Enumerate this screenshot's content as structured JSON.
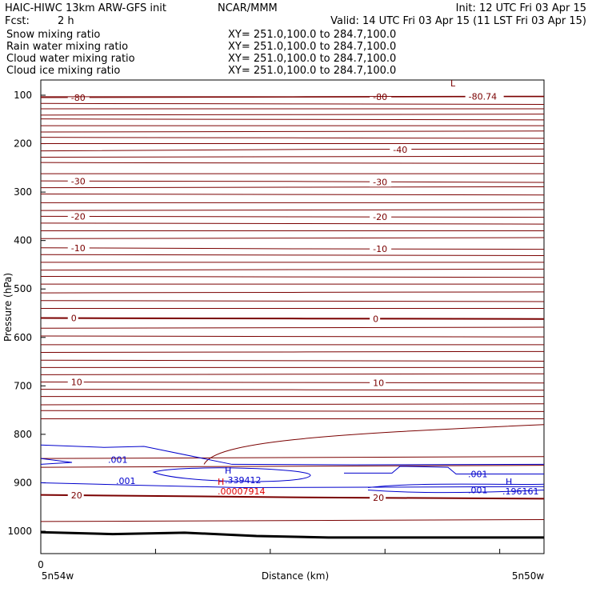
{
  "header": {
    "model": "HAIC-HIWC 13km ARW-GFS init",
    "org": "NCAR/MMM",
    "init": "Init: 12 UTC Fri 03 Apr 15",
    "fcst_label": "Fcst:",
    "fcst_value": "2 h",
    "valid": "Valid: 14 UTC Fri 03 Apr 15 (11 LST Fri 03 Apr 15)"
  },
  "fields": [
    {
      "name": "Snow mixing ratio",
      "xy": "XY= 251.0,100.0 to 284.7,100.0",
      "color": "#000000"
    },
    {
      "name": "Rain water mixing ratio",
      "xy": "XY= 251.0,100.0 to 284.7,100.0",
      "color": "#e00000"
    },
    {
      "name": "Cloud water mixing ratio",
      "xy": "XY= 251.0,100.0 to 284.7,100.0",
      "color": "#0000cc"
    },
    {
      "name": "Cloud ice mixing ratio",
      "xy": "XY= 251.0,100.0 to 284.7,100.0",
      "color": "#000000"
    }
  ],
  "colors": {
    "temperature": "#7a0000",
    "cloud_water": "#0000cc",
    "rain": "#e00000",
    "terrain": "#000000"
  },
  "chart_data": {
    "type": "line",
    "title": "",
    "xlabel": "Distance (km)",
    "ylabel": "Pressure (hPa)",
    "x_start_label": "5n54w",
    "x_end_label": "5n50w",
    "x_origin_label": "0",
    "x_range": [
      0,
      440
    ],
    "y_range": [
      50,
      1050
    ],
    "y_ticks": [
      100,
      200,
      300,
      400,
      500,
      600,
      700,
      800,
      900,
      1000
    ],
    "temperature_isotherms": [
      {
        "label": "-80",
        "p": [
          105,
          104,
          103
        ]
      },
      {
        "label": "-80.74",
        "p": [
          103,
          103,
          102
        ]
      },
      {
        "label": "-40",
        "p": [
          215,
          212,
          211
        ]
      },
      {
        "label": "-30",
        "p": [
          277,
          278,
          280
        ]
      },
      {
        "label": "-20",
        "p": [
          350,
          351,
          352
        ]
      },
      {
        "label": "-10",
        "p": [
          415,
          417,
          418
        ]
      },
      {
        "label": "0",
        "p": [
          560,
          561,
          562
        ]
      },
      {
        "label": "10",
        "p": [
          692,
          693,
          694
        ]
      },
      {
        "label": "20",
        "p": [
          925,
          930,
          933
        ]
      }
    ],
    "cloud_water_contours": [
      {
        "label": ".001",
        "p": [
          873,
          872,
          870
        ]
      },
      {
        "label": ".001",
        "p": [
          905,
          903,
          900
        ]
      },
      {
        "label": ".001",
        "p": [
          910,
          902,
          915
        ]
      }
    ],
    "annotations": [
      {
        "text": "L",
        "x": 365,
        "p": 90,
        "color": "#7a0000"
      },
      {
        "text": "H",
        "x": 170,
        "p": 887,
        "color": "#0000cc"
      },
      {
        "text": ".339412",
        "x": 170,
        "p": 900,
        "color": "#0000cc"
      },
      {
        "text": "H",
        "x": 168,
        "p": 907,
        "color": "#e00000"
      },
      {
        "text": ".00007914",
        "x": 172,
        "p": 920,
        "color": "#e00000"
      },
      {
        "text": "H",
        "x": 408,
        "p": 905,
        "color": "#0000cc"
      },
      {
        "text": ".196161",
        "x": 412,
        "p": 920,
        "color": "#0000cc"
      }
    ],
    "terrain_p": [
      1002,
      1006,
      1003,
      1010,
      1013,
      1013,
      1013,
      1013
    ],
    "grid": false,
    "legend": "top-left"
  }
}
